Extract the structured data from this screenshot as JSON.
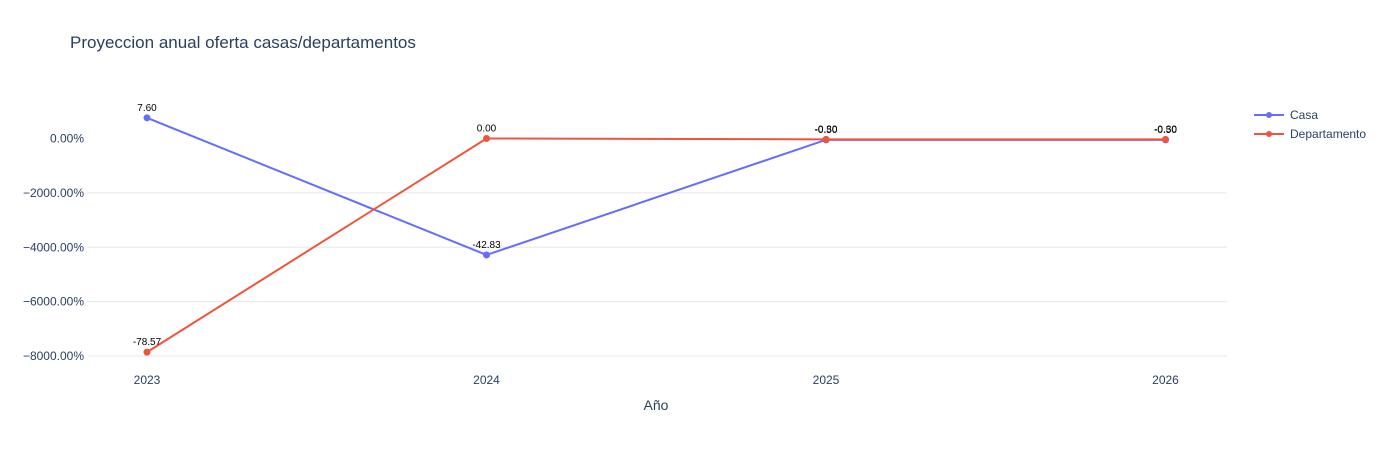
{
  "title": "Proyeccion anual oferta casas/departamentos",
  "chart_data": {
    "type": "line",
    "title": "Proyeccion anual oferta casas/departamentos",
    "xlabel": "Año",
    "ylabel": "",
    "x": [
      "2023",
      "2024",
      "2025",
      "2026"
    ],
    "ylim": [
      -8000,
      0
    ],
    "yticks": [
      0,
      -2000,
      -4000,
      -6000,
      -8000
    ],
    "ytick_labels": [
      "0.00%",
      "−2000.00%",
      "−4000.00%",
      "−6000.00%",
      "−8000.00%"
    ],
    "grid": true,
    "legend": "right",
    "series": [
      {
        "name": "Casa",
        "color": "#636efa",
        "values": [
          760,
          -4283,
          -50,
          -50
        ],
        "labels": [
          "7.60",
          "-42.83",
          "-0.50",
          "-0.50"
        ]
      },
      {
        "name": "Departamento",
        "color": "#ef553b",
        "values": [
          -7857,
          0,
          -30,
          -30
        ],
        "labels": [
          "-78.57",
          "0.00",
          "-0.30",
          "-0.30"
        ]
      }
    ]
  }
}
